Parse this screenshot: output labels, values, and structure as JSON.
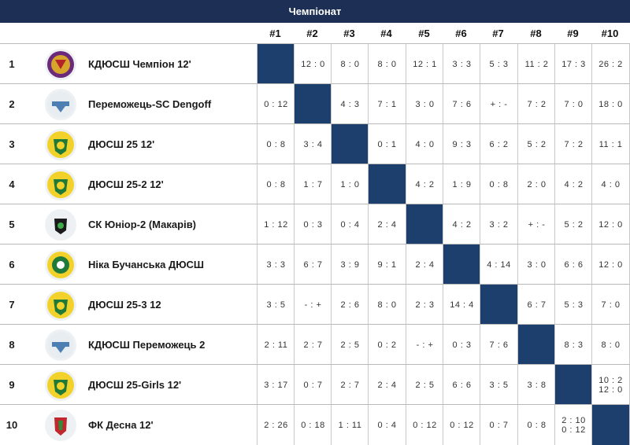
{
  "title": "Чемпіонат",
  "columns": [
    "#1",
    "#2",
    "#3",
    "#4",
    "#5",
    "#6",
    "#7",
    "#8",
    "#9",
    "#10"
  ],
  "rows": [
    {
      "rank": "1",
      "team": "КДЮСШ Чемпіон 12'",
      "logo": "champion-logo",
      "results": [
        "",
        "12 : 0",
        "8 : 0",
        "8 : 0",
        "12 : 1",
        "3 : 3",
        "5 : 3",
        "11 : 2",
        "17 : 3",
        "26 : 2"
      ]
    },
    {
      "rank": "2",
      "team": "Переможець-SC Dengoff",
      "logo": "peremozhets-logo",
      "results": [
        "0 : 12",
        "",
        "4 : 3",
        "7 : 1",
        "3 : 0",
        "7 : 6",
        "+ : -",
        "7 : 2",
        "7 : 0",
        "18 : 0"
      ]
    },
    {
      "rank": "3",
      "team": "ДЮСШ 25 12'",
      "logo": "dyussh25-logo",
      "results": [
        "0 : 8",
        "3 : 4",
        "",
        "0 : 1",
        "4 : 0",
        "9 : 3",
        "6 : 2",
        "5 : 2",
        "7 : 2",
        "11 : 1"
      ]
    },
    {
      "rank": "4",
      "team": "ДЮСШ 25-2 12'",
      "logo": "dyussh25-logo",
      "results": [
        "0 : 8",
        "1 : 7",
        "1 : 0",
        "",
        "4 : 2",
        "1 : 9",
        "0 : 8",
        "2 : 0",
        "4 : 2",
        "4 : 0"
      ]
    },
    {
      "rank": "5",
      "team": "СК Юніор-2 (Макарів)",
      "logo": "junior-logo",
      "results": [
        "1 : 12",
        "0 : 3",
        "0 : 4",
        "2 : 4",
        "",
        "4 : 2",
        "3 : 2",
        "+ : -",
        "5 : 2",
        "12 : 0"
      ]
    },
    {
      "rank": "6",
      "team": "Ніка Бучанська ДЮСШ",
      "logo": "nika-logo",
      "results": [
        "3 : 3",
        "6 : 7",
        "3 : 9",
        "9 : 1",
        "2 : 4",
        "",
        "4 : 14",
        "3 : 0",
        "6 : 6",
        "12 : 0"
      ]
    },
    {
      "rank": "7",
      "team": "ДЮСШ 25-3 12",
      "logo": "dyussh25-logo",
      "results": [
        "3 : 5",
        "- : +",
        "2 : 6",
        "8 : 0",
        "2 : 3",
        "14 : 4",
        "",
        "6 : 7",
        "5 : 3",
        "7 : 0"
      ]
    },
    {
      "rank": "8",
      "team": "КДЮСШ Переможець 2",
      "logo": "peremozhets-logo",
      "results": [
        "2 : 11",
        "2 : 7",
        "2 : 5",
        "0 : 2",
        "- : +",
        "0 : 3",
        "7 : 6",
        "",
        "8 : 3",
        "8 : 0"
      ]
    },
    {
      "rank": "9",
      "team": "ДЮСШ 25-Girls 12'",
      "logo": "dyussh25-logo",
      "results": [
        "3 : 17",
        "0 : 7",
        "2 : 7",
        "2 : 4",
        "2 : 5",
        "6 : 6",
        "3 : 5",
        "3 : 8",
        "",
        "10 : 2\n12 : 0"
      ]
    },
    {
      "rank": "10",
      "team": "ФК Десна 12'",
      "logo": "desna-logo",
      "results": [
        "2 : 26",
        "0 : 18",
        "1 : 11",
        "0 : 4",
        "0 : 12",
        "0 : 12",
        "0 : 7",
        "0 : 8",
        "2 : 10\n0 : 12",
        ""
      ]
    }
  ],
  "colors": {
    "header": "#1d2f55",
    "diagonal": "#1d3f6e",
    "grid": "#c9c9c9"
  }
}
